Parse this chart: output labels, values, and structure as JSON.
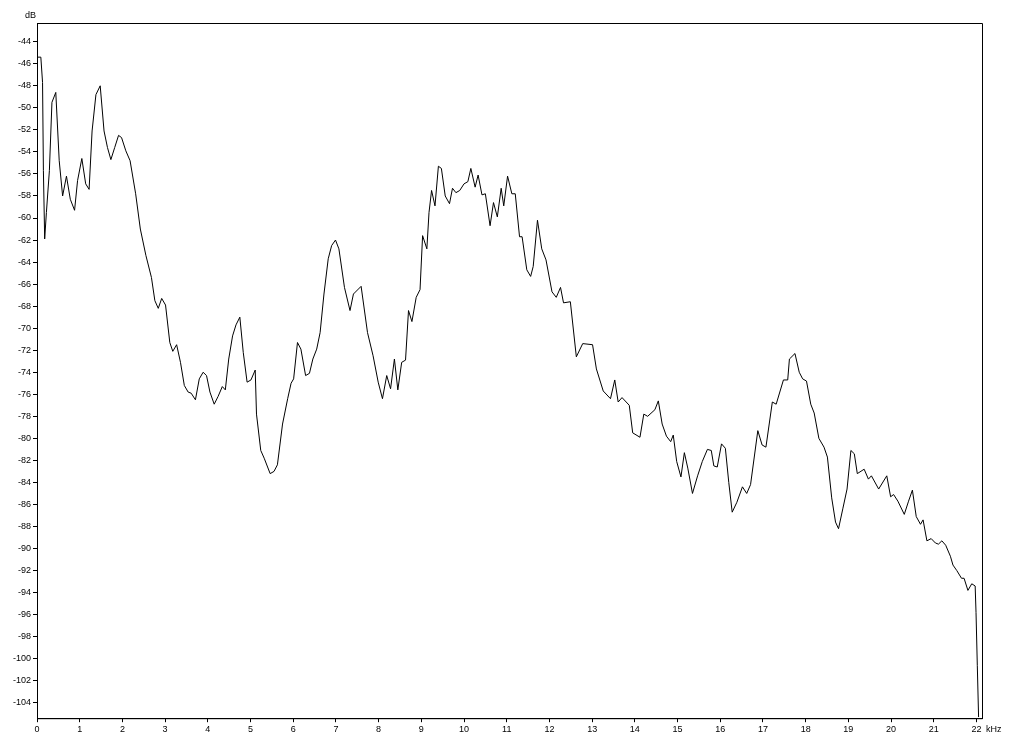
{
  "chart_data": {
    "type": "line",
    "xlabel": "kHz",
    "ylabel": "dB",
    "xlim": [
      0,
      22.13
    ],
    "ylim": [
      -105.4,
      -42.3
    ],
    "xticks": [
      0,
      1,
      2,
      3,
      4,
      5,
      6,
      7,
      8,
      9,
      10,
      11,
      12,
      13,
      14,
      15,
      16,
      17,
      18,
      19,
      20,
      21,
      22
    ],
    "yticks": [
      -44,
      -46,
      -48,
      -50,
      -52,
      -54,
      -56,
      -58,
      -60,
      -62,
      -64,
      -66,
      -68,
      -70,
      -72,
      -74,
      -76,
      -78,
      -80,
      -82,
      -84,
      -86,
      -88,
      -90,
      -92,
      -94,
      -96,
      -98,
      -100,
      -102,
      -104
    ],
    "grid": false,
    "legend": false,
    "marker": "none",
    "line_style": "solid",
    "series": [
      {
        "color": "#000000",
        "x": [
          0,
          0.09,
          0.13,
          0.15,
          0.18,
          0.22,
          0.29,
          0.35,
          0.44,
          0.52,
          0.6,
          0.69,
          0.78,
          0.88,
          0.95,
          1.05,
          1.14,
          1.22,
          1.29,
          1.38,
          1.48,
          1.57,
          1.65,
          1.73,
          1.82,
          1.91,
          1.98,
          2.08,
          2.18,
          2.31,
          2.42,
          2.55,
          2.68,
          2.76,
          2.84,
          2.92,
          3.01,
          3.11,
          3.18,
          3.27,
          3.36,
          3.45,
          3.54,
          3.61,
          3.71,
          3.8,
          3.89,
          3.97,
          4.05,
          4.15,
          4.24,
          4.34,
          4.41,
          4.49,
          4.58,
          4.66,
          4.75,
          4.83,
          4.92,
          5.01,
          5.11,
          5.14,
          5.24,
          5.32,
          5.46,
          5.55,
          5.63,
          5.75,
          5.87,
          5.95,
          6.01,
          6.1,
          6.18,
          6.29,
          6.38,
          6.46,
          6.55,
          6.63,
          6.72,
          6.82,
          6.9,
          6.99,
          7.07,
          7.2,
          7.33,
          7.41,
          7.59,
          7.74,
          7.87,
          7.99,
          8.09,
          8.19,
          8.28,
          8.37,
          8.45,
          8.54,
          8.63,
          8.7,
          8.78,
          8.88,
          8.97,
          9.03,
          9.13,
          9.18,
          9.24,
          9.32,
          9.4,
          9.47,
          9.56,
          9.66,
          9.73,
          9.81,
          9.9,
          10.0,
          10.09,
          10.16,
          10.26,
          10.33,
          10.42,
          10.5,
          10.61,
          10.69,
          10.78,
          10.87,
          10.93,
          11.02,
          11.12,
          11.2,
          11.3,
          11.36,
          11.47,
          11.56,
          11.62,
          11.72,
          11.82,
          11.92,
          12.06,
          12.16,
          12.26,
          12.33,
          12.49,
          12.63,
          12.78,
          13.01,
          13.1,
          13.26,
          13.43,
          13.53,
          13.61,
          13.7,
          13.87,
          13.95,
          14.12,
          14.21,
          14.3,
          14.47,
          14.55,
          14.64,
          14.74,
          14.84,
          14.9,
          14.98,
          15.08,
          15.16,
          15.24,
          15.35,
          15.47,
          15.58,
          15.7,
          15.79,
          15.85,
          15.93,
          16.03,
          16.12,
          16.2,
          16.28,
          16.39,
          16.52,
          16.62,
          16.71,
          16.88,
          16.98,
          17.07,
          17.22,
          17.31,
          17.48,
          17.58,
          17.62,
          17.75,
          17.85,
          17.93,
          18.02,
          18.12,
          18.2,
          18.31,
          18.43,
          18.51,
          18.61,
          18.7,
          18.77,
          18.87,
          18.97,
          19.06,
          19.14,
          19.21,
          19.37,
          19.47,
          19.54,
          19.71,
          19.9,
          19.99,
          20.06,
          20.16,
          20.31,
          20.41,
          20.5,
          20.59,
          20.69,
          20.75,
          20.84,
          20.94,
          21.04,
          21.11,
          21.19,
          21.28,
          21.39,
          21.45,
          21.54,
          21.65,
          21.71,
          21.8,
          21.89,
          21.97,
          21.99,
          22.02,
          22.05
        ],
        "values": [
          -45.4,
          -45.4,
          -47.7,
          -55.7,
          -61.9,
          -59.5,
          -55.7,
          -49.5,
          -48.6,
          -54.8,
          -58.0,
          -56.2,
          -58.3,
          -59.3,
          -56.6,
          -54.6,
          -56.9,
          -57.4,
          -52.1,
          -48.8,
          -48.0,
          -52.1,
          -53.6,
          -54.7,
          -53.6,
          -52.5,
          -52.7,
          -53.9,
          -54.8,
          -57.8,
          -61.0,
          -63.4,
          -65.4,
          -67.5,
          -68.2,
          -67.3,
          -67.9,
          -71.3,
          -72.1,
          -71.5,
          -73.1,
          -75.2,
          -75.8,
          -75.9,
          -76.5,
          -74.6,
          -74.0,
          -74.3,
          -75.8,
          -76.9,
          -76.2,
          -75.3,
          -75.6,
          -72.8,
          -70.7,
          -69.7,
          -69.0,
          -72.2,
          -74.9,
          -74.7,
          -73.8,
          -77.8,
          -81.1,
          -81.8,
          -83.2,
          -83.0,
          -82.4,
          -78.7,
          -76.4,
          -75.0,
          -74.6,
          -71.3,
          -71.9,
          -74.3,
          -74.1,
          -72.8,
          -71.9,
          -70.4,
          -66.9,
          -63.7,
          -62.5,
          -62.0,
          -62.8,
          -66.3,
          -68.4,
          -66.9,
          -66.2,
          -70.4,
          -72.5,
          -74.9,
          -76.4,
          -74.3,
          -75.5,
          -72.8,
          -75.6,
          -73.1,
          -72.9,
          -68.4,
          -69.4,
          -67.2,
          -66.5,
          -61.6,
          -62.8,
          -59.5,
          -57.5,
          -58.9,
          -55.3,
          -55.5,
          -58.0,
          -58.7,
          -57.3,
          -57.7,
          -57.5,
          -56.9,
          -56.7,
          -55.5,
          -57.2,
          -56.1,
          -57.9,
          -57.8,
          -60.7,
          -58.6,
          -59.9,
          -57.3,
          -58.9,
          -56.2,
          -57.8,
          -57.8,
          -61.7,
          -61.7,
          -64.7,
          -65.3,
          -64.4,
          -60.2,
          -62.8,
          -63.8,
          -66.7,
          -67.2,
          -66.3,
          -67.7,
          -67.6,
          -72.6,
          -71.4,
          -71.5,
          -73.7,
          -75.7,
          -76.4,
          -74.7,
          -76.7,
          -76.3,
          -77.0,
          -79.5,
          -79.9,
          -77.8,
          -78.0,
          -77.4,
          -76.6,
          -78.7,
          -79.8,
          -80.3,
          -79.7,
          -82.1,
          -83.5,
          -81.3,
          -82.7,
          -85.0,
          -83.4,
          -82.1,
          -81.0,
          -81.1,
          -82.5,
          -82.6,
          -80.5,
          -80.9,
          -84.0,
          -86.7,
          -85.8,
          -84.4,
          -85.0,
          -84.2,
          -79.3,
          -80.6,
          -80.8,
          -76.7,
          -76.9,
          -74.7,
          -74.7,
          -72.8,
          -72.3,
          -74.0,
          -74.6,
          -74.8,
          -76.9,
          -77.7,
          -80.0,
          -80.8,
          -81.7,
          -85.4,
          -87.6,
          -88.2,
          -86.4,
          -84.6,
          -81.1,
          -81.4,
          -83.2,
          -82.8,
          -83.7,
          -83.4,
          -84.6,
          -83.4,
          -85.3,
          -85.1,
          -85.7,
          -86.9,
          -85.7,
          -84.7,
          -87.1,
          -87.8,
          -87.4,
          -89.3,
          -89.1,
          -89.5,
          -89.6,
          -89.3,
          -89.7,
          -90.7,
          -91.5,
          -92.0,
          -92.7,
          -92.7,
          -93.8,
          -93.2,
          -93.4,
          -95.8,
          -100.6,
          -105.3
        ]
      }
    ]
  }
}
